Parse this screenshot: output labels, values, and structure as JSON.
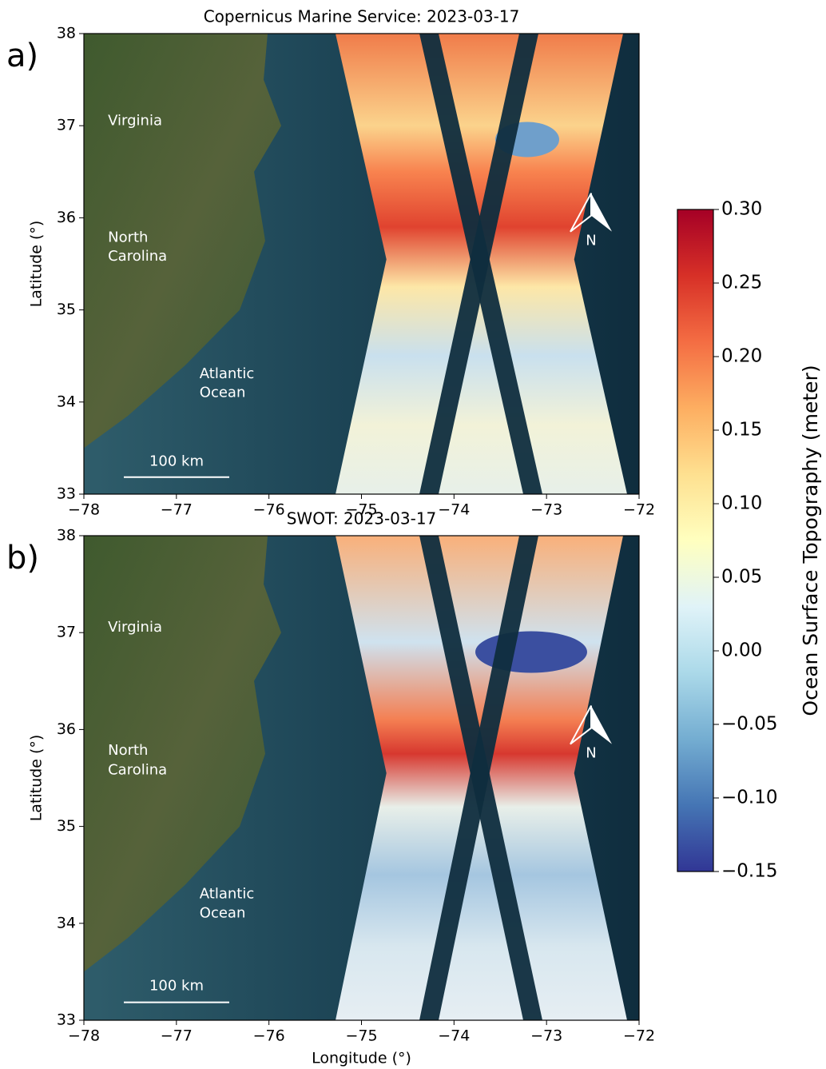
{
  "panels": [
    {
      "label": "a)",
      "title": "Copernicus Marine Service: 2023-03-17",
      "places": [
        {
          "lines": [
            "Virginia"
          ]
        },
        {
          "lines": [
            "North",
            "Carolina"
          ]
        },
        {
          "lines": [
            "Atlantic",
            "Ocean"
          ]
        }
      ],
      "scale_bar": "100 km",
      "north": "N",
      "ylabel": "Latitude (°)",
      "xlim": [
        -78,
        -72
      ],
      "ylim": [
        33,
        38
      ],
      "xticks": [
        {
          "value": -78,
          "label": "−78"
        },
        {
          "value": -77,
          "label": "−77"
        },
        {
          "value": -76,
          "label": "−76"
        },
        {
          "value": -75,
          "label": "−75"
        },
        {
          "value": -74,
          "label": "−74"
        },
        {
          "value": -73,
          "label": "−73"
        },
        {
          "value": -72,
          "label": "−72"
        }
      ],
      "yticks": [
        33,
        34,
        35,
        36,
        37,
        38
      ]
    },
    {
      "label": "b)",
      "title": "SWOT: 2023-03-17",
      "places": [
        {
          "lines": [
            "Virginia"
          ]
        },
        {
          "lines": [
            "North",
            "Carolina"
          ]
        },
        {
          "lines": [
            "Atlantic",
            "Ocean"
          ]
        }
      ],
      "scale_bar": "100 km",
      "north": "N",
      "ylabel": "Latitude (°)",
      "xlabel": "Longitude (°)",
      "xlim": [
        -78,
        -72
      ],
      "ylim": [
        33,
        38
      ],
      "xticks": [
        {
          "value": -78,
          "label": "−78"
        },
        {
          "value": -77,
          "label": "−77"
        },
        {
          "value": -76,
          "label": "−76"
        },
        {
          "value": -75,
          "label": "−75"
        },
        {
          "value": -74,
          "label": "−74"
        },
        {
          "value": -73,
          "label": "−73"
        },
        {
          "value": -72,
          "label": "−72"
        }
      ],
      "yticks": [
        33,
        34,
        35,
        36,
        37,
        38
      ]
    }
  ],
  "colorbar": {
    "label": "Ocean Surface Topography (meter)",
    "lim": [
      -0.15,
      0.3
    ],
    "ticks": [
      {
        "value": -0.15,
        "label": "−0.15"
      },
      {
        "value": -0.1,
        "label": "−0.10"
      },
      {
        "value": -0.05,
        "label": "−0.05"
      },
      {
        "value": 0,
        "label": "0.00"
      },
      {
        "value": 0.05,
        "label": "0.05"
      },
      {
        "value": 0.1,
        "label": "0.10"
      },
      {
        "value": 0.15,
        "label": "0.15"
      },
      {
        "value": 0.2,
        "label": "0.20"
      },
      {
        "value": 0.25,
        "label": "0.25"
      },
      {
        "value": 0.3,
        "label": "0.30"
      }
    ]
  }
}
